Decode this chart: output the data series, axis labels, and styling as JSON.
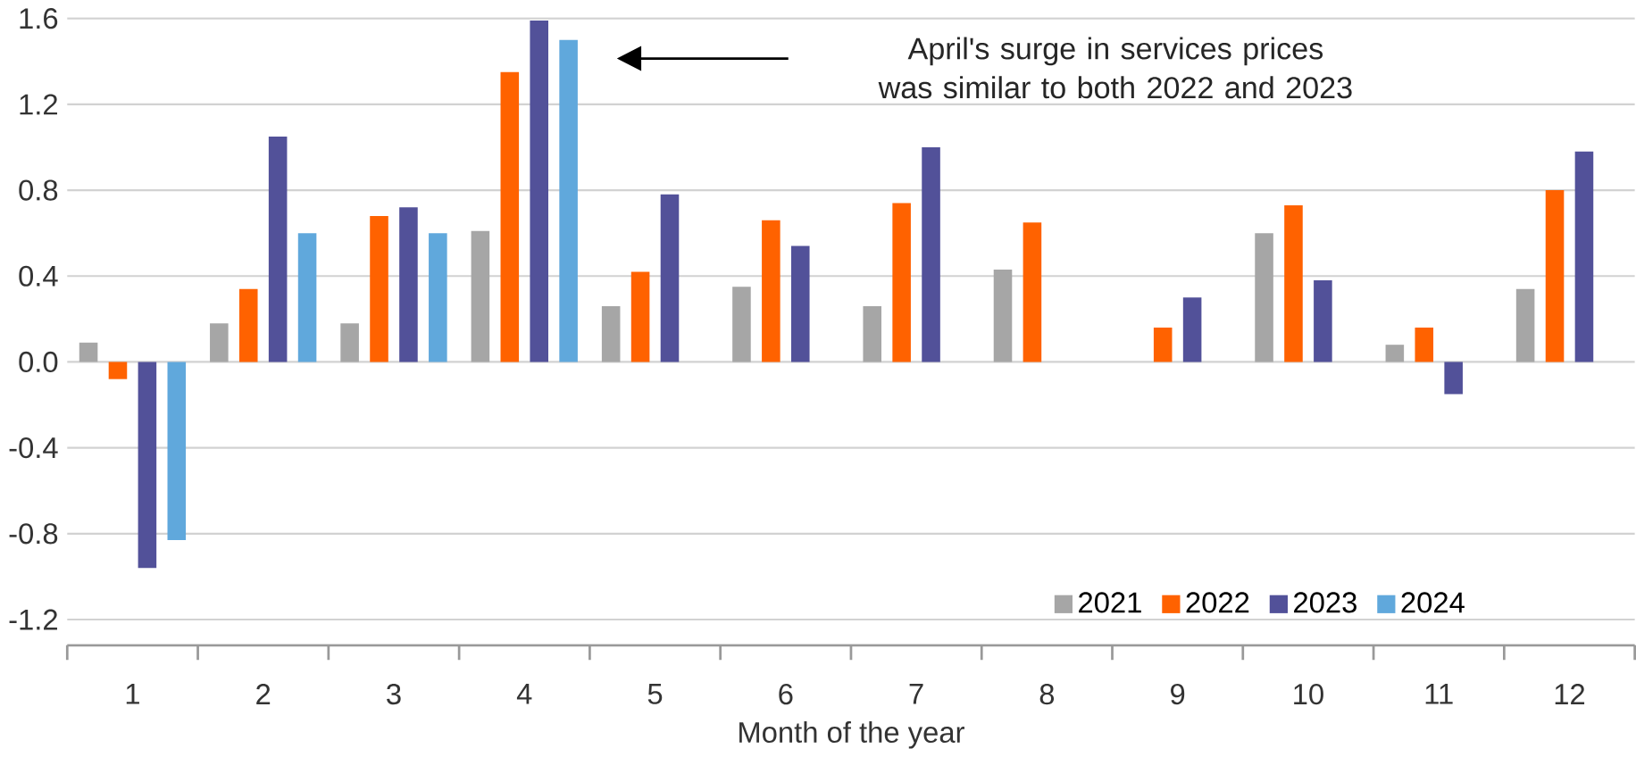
{
  "chart_data": {
    "type": "bar",
    "xlabel": "Month of the year",
    "categories": [
      "1",
      "2",
      "3",
      "4",
      "5",
      "6",
      "7",
      "8",
      "9",
      "10",
      "11",
      "12"
    ],
    "series": [
      {
        "name": "2021",
        "color": "#a6a6a6",
        "values": [
          0.09,
          0.18,
          0.18,
          0.61,
          0.26,
          0.35,
          0.26,
          0.43,
          null,
          0.6,
          0.08,
          0.34
        ]
      },
      {
        "name": "2022",
        "color": "#ff6200",
        "values": [
          -0.08,
          0.34,
          0.68,
          1.35,
          0.42,
          0.66,
          0.74,
          0.65,
          0.16,
          0.73,
          0.16,
          0.8
        ]
      },
      {
        "name": "2023",
        "color": "#525199",
        "values": [
          -0.96,
          1.05,
          0.72,
          1.59,
          0.78,
          0.54,
          1.0,
          null,
          0.3,
          0.38,
          -0.15,
          0.98
        ]
      },
      {
        "name": "2024",
        "color": "#60a8dc",
        "values": [
          -0.83,
          0.6,
          0.6,
          1.5,
          null,
          null,
          null,
          null,
          null,
          null,
          null,
          null
        ]
      }
    ],
    "ylim": [
      -1.32,
      1.6
    ],
    "yticks": [
      {
        "value": -1.2,
        "label": "-1.2"
      },
      {
        "value": -0.8,
        "label": "-0.8"
      },
      {
        "value": -0.4,
        "label": "-0.4"
      },
      {
        "value": 0,
        "label": "0.0"
      },
      {
        "value": 0.4,
        "label": "0.4"
      },
      {
        "value": 0.8,
        "label": "0.8"
      },
      {
        "value": 1.2,
        "label": "1.2"
      },
      {
        "value": 1.6,
        "label": "1.6"
      }
    ],
    "grid": "y",
    "legend": "bottom right",
    "annotations": [
      "April's surge in services prices was similar to both 2022 and 2023"
    ]
  }
}
